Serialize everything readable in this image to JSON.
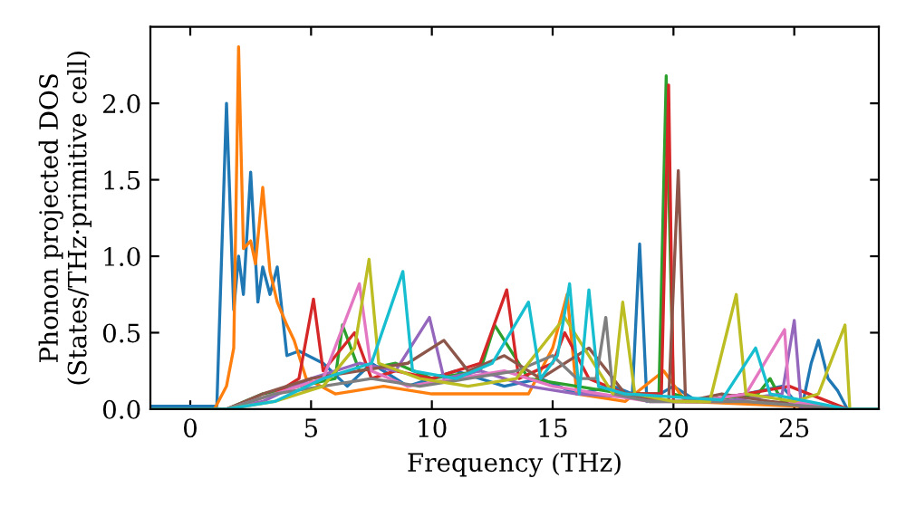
{
  "chart_data": {
    "type": "line",
    "xlabel": "Frequency (THz)",
    "ylabel": "Phonon projected DOS\n(States/THz·primitive cell)",
    "xlim": [
      -1.65,
      28.5
    ],
    "ylim": [
      0,
      2.5
    ],
    "xticks": [
      0,
      5,
      10,
      15,
      20,
      25
    ],
    "yticks": [
      {
        "value": 0,
        "label": "0.0"
      },
      0.5,
      {
        "value": 1,
        "label": "1.0"
      },
      1.5,
      {
        "value": 2,
        "label": "2.0"
      }
    ],
    "grid": false,
    "marker": "none",
    "line_style": "solid",
    "series": [
      {
        "color": "#1f77b4",
        "x": [
          -1.65,
          1.1,
          1.5,
          1.8,
          2.0,
          2.2,
          2.5,
          2.8,
          3.0,
          3.3,
          3.6,
          4.0,
          4.5,
          5.5,
          6.5,
          7.5,
          9.0,
          11.0,
          13.0,
          14.5,
          16.0,
          17.5,
          18.3,
          18.6,
          18.9,
          20.0,
          21.0,
          23.0,
          24.5,
          25.3,
          25.7,
          26.0,
          26.4,
          26.8,
          27.2,
          28.5
        ],
        "values": [
          0.02,
          0.02,
          2.0,
          0.65,
          1.0,
          0.75,
          1.55,
          0.7,
          0.93,
          0.75,
          0.93,
          0.35,
          0.38,
          0.3,
          0.15,
          0.3,
          0.15,
          0.25,
          0.15,
          0.2,
          0.1,
          0.15,
          0.1,
          1.08,
          0.05,
          0.15,
          0.05,
          0.1,
          0.15,
          0.0,
          0.3,
          0.45,
          0.2,
          0.12,
          0.0,
          0.0
        ]
      },
      {
        "color": "#ff7f0e",
        "x": [
          -1.65,
          1.0,
          1.5,
          1.8,
          2.0,
          2.2,
          2.5,
          2.7,
          3.0,
          3.3,
          3.6,
          4.0,
          4.3,
          4.8,
          6.0,
          8.0,
          10.0,
          14.0,
          15.0,
          15.6,
          16.0,
          18.0,
          19.6,
          20.5,
          25.0,
          27.2,
          28.5
        ],
        "values": [
          0.0,
          0.0,
          0.15,
          0.4,
          2.37,
          1.05,
          1.1,
          0.95,
          1.45,
          0.9,
          0.7,
          0.55,
          0.45,
          0.2,
          0.1,
          0.15,
          0.1,
          0.1,
          0.4,
          0.75,
          0.1,
          0.05,
          0.25,
          0.05,
          0.02,
          0.0,
          0.0
        ]
      },
      {
        "color": "#2ca02c",
        "x": [
          -1.65,
          1.5,
          3.0,
          4.5,
          6.0,
          6.3,
          7.0,
          8.5,
          10.0,
          12.0,
          12.6,
          14.0,
          16.0,
          18.0,
          19.4,
          19.7,
          20.0,
          21.0,
          23.5,
          24.0,
          24.5,
          27.2,
          28.5
        ],
        "values": [
          0.0,
          0.0,
          0.1,
          0.15,
          0.2,
          0.55,
          0.25,
          0.3,
          0.2,
          0.25,
          0.55,
          0.2,
          0.15,
          0.1,
          0.1,
          2.18,
          0.1,
          0.05,
          0.1,
          0.2,
          0.05,
          0.0,
          0.0
        ]
      },
      {
        "color": "#d62728",
        "x": [
          -1.65,
          1.5,
          3.5,
          4.5,
          5.1,
          5.5,
          6.8,
          7.5,
          8.5,
          10.0,
          12.0,
          13.1,
          13.6,
          15.0,
          15.5,
          16.5,
          18.0,
          19.5,
          19.8,
          20.0,
          21.0,
          23.0,
          24.8,
          27.2,
          28.5
        ],
        "values": [
          0.0,
          0.0,
          0.1,
          0.2,
          0.72,
          0.25,
          0.5,
          0.2,
          0.25,
          0.2,
          0.3,
          0.78,
          0.2,
          0.3,
          0.5,
          0.2,
          0.1,
          0.1,
          2.12,
          0.05,
          0.05,
          0.1,
          0.15,
          0.0,
          0.0
        ]
      },
      {
        "color": "#9467bd",
        "x": [
          -1.65,
          1.5,
          3.0,
          5.0,
          7.0,
          8.5,
          9.9,
          10.5,
          12.0,
          14.0,
          16.0,
          18.0,
          20.0,
          22.0,
          24.5,
          25.0,
          25.3,
          27.2,
          28.5
        ],
        "values": [
          0.0,
          0.0,
          0.05,
          0.2,
          0.3,
          0.25,
          0.6,
          0.2,
          0.25,
          0.15,
          0.1,
          0.08,
          0.05,
          0.05,
          0.1,
          0.58,
          0.0,
          0.0,
          0.0
        ]
      },
      {
        "color": "#8c564b",
        "x": [
          -1.65,
          1.5,
          3.0,
          5.0,
          7.0,
          9.0,
          10.5,
          11.5,
          13.0,
          14.5,
          16.5,
          18.0,
          19.8,
          20.2,
          20.5,
          22.0,
          24.0,
          27.2,
          28.5
        ],
        "values": [
          0.0,
          0.0,
          0.1,
          0.2,
          0.25,
          0.3,
          0.45,
          0.25,
          0.35,
          0.2,
          0.4,
          0.1,
          0.05,
          1.56,
          0.05,
          0.1,
          0.05,
          0.0,
          0.0
        ]
      },
      {
        "color": "#e377c2",
        "x": [
          -1.65,
          1.5,
          3.5,
          5.5,
          7.0,
          7.5,
          9.0,
          11.0,
          13.0,
          15.0,
          17.0,
          19.0,
          21.0,
          23.0,
          24.6,
          24.8,
          27.2,
          28.5
        ],
        "values": [
          0.0,
          0.0,
          0.1,
          0.2,
          0.82,
          0.25,
          0.15,
          0.2,
          0.25,
          0.15,
          0.1,
          0.05,
          0.05,
          0.1,
          0.52,
          0.05,
          0.0,
          0.0
        ]
      },
      {
        "color": "#7f7f7f",
        "x": [
          -1.65,
          1.5,
          3.5,
          5.5,
          7.5,
          9.5,
          11.5,
          13.5,
          15.0,
          16.0,
          16.8,
          17.2,
          17.5,
          19.0,
          21.0,
          23.0,
          27.2,
          28.5
        ],
        "values": [
          0.0,
          0.0,
          0.1,
          0.15,
          0.2,
          0.15,
          0.2,
          0.25,
          0.35,
          0.2,
          0.2,
          0.6,
          0.1,
          0.05,
          0.05,
          0.05,
          0.0,
          0.0
        ]
      },
      {
        "color": "#bcbd22",
        "x": [
          -1.65,
          1.5,
          3.5,
          5.5,
          6.8,
          7.4,
          7.8,
          9.5,
          11.5,
          13.5,
          15.5,
          17.5,
          17.9,
          18.4,
          20.0,
          21.5,
          22.6,
          23.0,
          25.0,
          26.0,
          27.1,
          27.3,
          28.5
        ],
        "values": [
          0.0,
          0.0,
          0.05,
          0.15,
          0.4,
          0.98,
          0.3,
          0.2,
          0.15,
          0.2,
          0.6,
          0.1,
          0.7,
          0.1,
          0.05,
          0.05,
          0.75,
          0.1,
          0.05,
          0.1,
          0.55,
          0.0,
          0.0
        ]
      },
      {
        "color": "#17becf",
        "x": [
          -1.65,
          1.5,
          3.5,
          5.5,
          7.5,
          8.8,
          9.2,
          11.0,
          12.5,
          14.0,
          14.5,
          15.2,
          15.7,
          16.1,
          16.5,
          16.9,
          18.0,
          20.0,
          22.0,
          23.4,
          24.0,
          27.2,
          28.5
        ],
        "values": [
          0.0,
          0.0,
          0.05,
          0.2,
          0.3,
          0.9,
          0.25,
          0.2,
          0.3,
          0.7,
          0.2,
          0.35,
          0.82,
          0.1,
          0.78,
          0.15,
          0.1,
          0.08,
          0.06,
          0.4,
          0.1,
          0.0,
          0.0
        ]
      }
    ]
  }
}
